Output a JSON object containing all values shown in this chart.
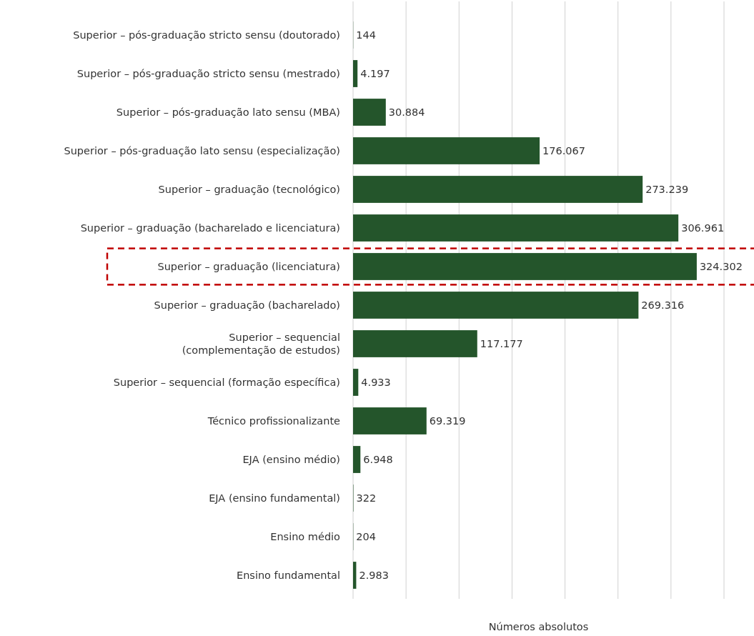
{
  "chart_data": {
    "type": "bar",
    "orientation": "horizontal",
    "xlabel": "Números absolutos",
    "categories": [
      "Superior – pós-graduação stricto sensu (doutorado)",
      "Superior – pós-graduação stricto sensu (mestrado)",
      "Superior – pós-graduação lato sensu (MBA)",
      "Superior – pós-graduação lato sensu (especialização)",
      "Superior – graduação (tecnológico)",
      "Superior – graduação (bacharelado e licenciatura)",
      "Superior – graduação (licenciatura)",
      "Superior – graduação (bacharelado)",
      "Superior – sequencial\n(complementação de estudos)",
      "Superior – sequencial (formação específica)",
      "Técnico profissionalizante",
      "EJA (ensino médio)",
      "EJA (ensino fundamental)",
      "Ensino médio",
      "Ensino fundamental"
    ],
    "values": [
      144,
      4197,
      30884,
      176067,
      273239,
      306961,
      324302,
      269316,
      117177,
      4933,
      69319,
      6948,
      322,
      204,
      2983
    ],
    "value_labels": [
      "144",
      "4.197",
      "30.884",
      "176.067",
      "273.239",
      "306.961",
      "324.302",
      "269.316",
      "117.177",
      "4.933",
      "69.319",
      "6.948",
      "322",
      "204",
      "2.983"
    ],
    "color": "#24552b",
    "xlim": [
      0,
      350000
    ],
    "xticks": [
      {
        "value": 0,
        "label": null
      },
      {
        "value": 50000,
        "label": null
      },
      {
        "value": 100000,
        "label": null
      },
      {
        "value": 150000,
        "label": null
      },
      {
        "value": 200000,
        "label": null
      },
      {
        "value": 250000,
        "label": null
      },
      {
        "value": 300000,
        "label": null
      },
      {
        "value": 350000,
        "label": null
      }
    ],
    "grid": "x",
    "tick_labels": "y"
  }
}
